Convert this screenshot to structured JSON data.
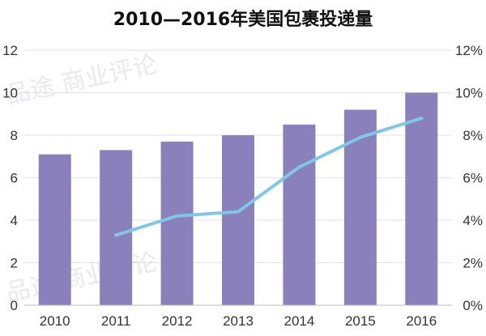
{
  "chart_data": {
    "type": "bar+line",
    "title": "2010—2016年美国包裹投递量",
    "categories": [
      "2010",
      "2011",
      "2012",
      "2013",
      "2014",
      "2015",
      "2016"
    ],
    "series": [
      {
        "type": "bar",
        "axis": "left",
        "values": [
          7.1,
          7.3,
          7.7,
          8.0,
          8.5,
          9.2,
          10.0
        ],
        "color": "#8a80bb"
      },
      {
        "type": "line",
        "axis": "right",
        "values": [
          null,
          3.3,
          4.2,
          4.4,
          6.5,
          7.9,
          8.8
        ],
        "color": "#7ec7e6"
      }
    ],
    "y_left": {
      "ylim": [
        0,
        12
      ],
      "ticks": [
        "0",
        "2",
        "4",
        "6",
        "8",
        "10",
        "12"
      ]
    },
    "y_right": {
      "ylim": [
        0,
        12
      ],
      "ticks": [
        "0%",
        "2%",
        "4%",
        "6%",
        "8%",
        "10%",
        "12%"
      ]
    },
    "grid": true,
    "legend": "none"
  },
  "watermark": "品途 商业评论"
}
